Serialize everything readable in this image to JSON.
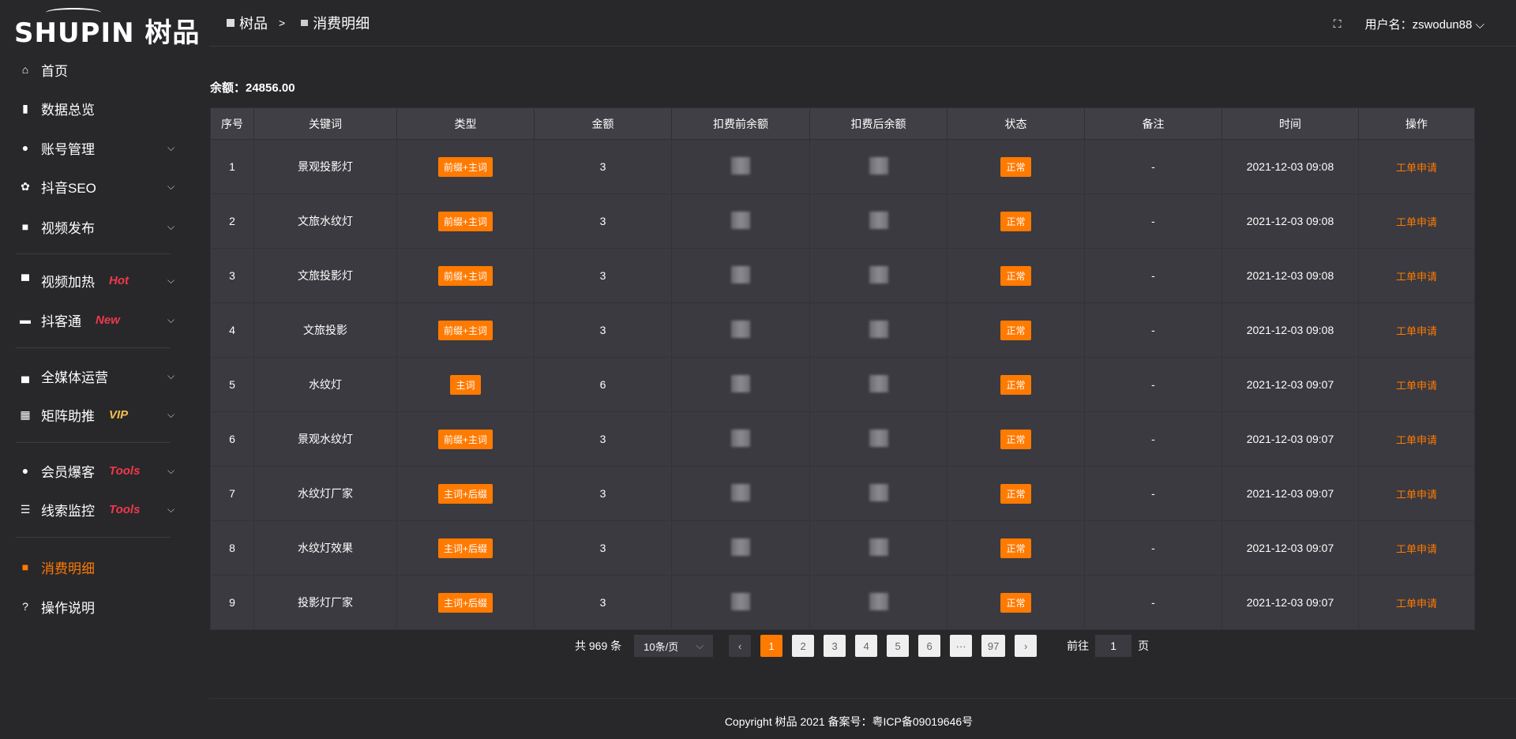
{
  "brand": {
    "logo": "SHUPIN 树品"
  },
  "sidebar": {
    "items": [
      {
        "label": "首页",
        "icon": "home-icon",
        "glyph": "⌂"
      },
      {
        "label": "数据总览",
        "icon": "bar-chart-icon",
        "glyph": "▮"
      },
      {
        "label": "账号管理",
        "icon": "user-icon",
        "glyph": "●",
        "chev": true
      },
      {
        "label": "抖音SEO",
        "icon": "gear-icon",
        "glyph": "✿",
        "chev": true
      },
      {
        "label": "视频发布",
        "icon": "camera-icon",
        "glyph": "■",
        "chev": true
      },
      {
        "label": "视频加热",
        "icon": "board-icon",
        "glyph": "▀",
        "tag": "Hot",
        "chev": true
      },
      {
        "label": "抖客通",
        "icon": "chat-icon",
        "glyph": "▬",
        "tag": "New",
        "chev": true
      },
      {
        "label": "全媒体运营",
        "icon": "monitor-icon",
        "glyph": "▄",
        "chev": true
      },
      {
        "label": "矩阵助推",
        "icon": "grid-icon",
        "glyph": "▦",
        "tag": "VIP",
        "chev": true
      },
      {
        "label": "会员爆客",
        "icon": "user-icon",
        "glyph": "●",
        "tag": "Tools",
        "chev": true
      },
      {
        "label": "线索监控",
        "icon": "sliders-icon",
        "glyph": "☰",
        "tag": "Tools",
        "chev": true
      },
      {
        "label": "消费明细",
        "icon": "wallet-icon",
        "glyph": "■",
        "active": true
      },
      {
        "label": "操作说明",
        "icon": "help-icon",
        "glyph": "?"
      }
    ]
  },
  "header": {
    "breadcrumb": [
      "树品",
      "消费明细"
    ],
    "separator": ">",
    "user_label": "用户名：zswodun88"
  },
  "balance": "余额：24856.00",
  "table": {
    "columns": [
      "序号",
      "关键词",
      "类型",
      "金额",
      "扣费前余额",
      "扣费后余额",
      "状态",
      "备注",
      "时间",
      "操作"
    ],
    "rows": [
      [
        "1",
        "景观投影灯",
        "前缀+主词",
        "3",
        "",
        "",
        "正常",
        "-",
        "2021-12-03 09:08",
        "工单申请"
      ],
      [
        "2",
        "文旅水纹灯",
        "前缀+主词",
        "3",
        "",
        "",
        "正常",
        "-",
        "2021-12-03 09:08",
        "工单申请"
      ],
      [
        "3",
        "文旅投影灯",
        "前缀+主词",
        "3",
        "",
        "",
        "正常",
        "-",
        "2021-12-03 09:08",
        "工单申请"
      ],
      [
        "4",
        "文旅投影",
        "前缀+主词",
        "3",
        "",
        "",
        "正常",
        "-",
        "2021-12-03 09:08",
        "工单申请"
      ],
      [
        "5",
        "水纹灯",
        "主词",
        "6",
        "",
        "",
        "正常",
        "-",
        "2021-12-03 09:07",
        "工单申请"
      ],
      [
        "6",
        "景观水纹灯",
        "前缀+主词",
        "3",
        "",
        "",
        "正常",
        "-",
        "2021-12-03 09:07",
        "工单申请"
      ],
      [
        "7",
        "水纹灯厂家",
        "主词+后缀",
        "3",
        "",
        "",
        "正常",
        "-",
        "2021-12-03 09:07",
        "工单申请"
      ],
      [
        "8",
        "水纹灯效果",
        "主词+后缀",
        "3",
        "",
        "",
        "正常",
        "-",
        "2021-12-03 09:07",
        "工单申请"
      ],
      [
        "9",
        "投影灯厂家",
        "主词+后缀",
        "3",
        "",
        "",
        "正常",
        "-",
        "2021-12-03 09:07",
        "工单申请"
      ]
    ]
  },
  "pagination": {
    "total": "共 969 条",
    "page_size": "10条/页",
    "pages": [
      "1",
      "2",
      "3",
      "4",
      "5",
      "6",
      "···",
      "97"
    ],
    "current": "1",
    "goto_label": "前往",
    "goto_value": "1",
    "page_unit": "页"
  },
  "footer": "Copyright 树品 2021 备案号：粤ICP备09019646号",
  "colors": {
    "accent": "#ff7a00",
    "hot": "#f0384a",
    "vip": "#f5c04a",
    "background": "#28282b"
  }
}
